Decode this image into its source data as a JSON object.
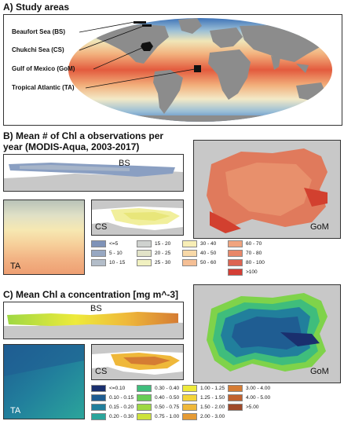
{
  "panel_a": {
    "title": "A) Study areas",
    "labels": [
      {
        "id": "bs",
        "text": "Beaufort Sea (BS)"
      },
      {
        "id": "cs",
        "text": "Chukchi Sea (CS)"
      },
      {
        "id": "gom",
        "text": "Gulf of Mexico (GoM)"
      },
      {
        "id": "ta",
        "text": "Tropical Atlantic (TA)"
      }
    ]
  },
  "panel_b": {
    "title_line1": "B) Mean # of Chl a observations per",
    "title_line2": "year (MODIS-Aqua, 2003-2017)",
    "map_labels": {
      "bs": "BS",
      "cs": "CS",
      "gom": "GoM",
      "ta": "TA"
    },
    "legend": [
      {
        "label": "<=5",
        "color": "#7f93b8"
      },
      {
        "label": "5 - 10",
        "color": "#98a8c2"
      },
      {
        "label": "10 - 15",
        "color": "#b3bdc9"
      },
      {
        "label": "15 - 20",
        "color": "#cfd2cf"
      },
      {
        "label": "20 - 25",
        "color": "#e2e3c8"
      },
      {
        "label": "25 - 30",
        "color": "#f1f1c0"
      },
      {
        "label": "30 - 40",
        "color": "#f8eeb6"
      },
      {
        "label": "40 - 50",
        "color": "#f8d9a8"
      },
      {
        "label": "50 - 60",
        "color": "#f5bf95"
      },
      {
        "label": "60 - 70",
        "color": "#f0a47e"
      },
      {
        "label": "70 - 80",
        "color": "#e88769"
      },
      {
        "label": "80 - 100",
        "color": "#dd6452"
      },
      {
        "label": ">100",
        "color": "#d43e35"
      }
    ]
  },
  "panel_c": {
    "title": "C) Mean Chl a concentration [mg m^-3]",
    "map_labels": {
      "bs": "BS",
      "cs": "CS",
      "gom": "GoM",
      "ta": "TA"
    },
    "legend": [
      {
        "label": "<=0.10",
        "color": "#1a2f6e"
      },
      {
        "label": "0.10 - 0.15",
        "color": "#1f5d92"
      },
      {
        "label": "0.15 - 0.20",
        "color": "#217f9c"
      },
      {
        "label": "0.20 - 0.30",
        "color": "#2ba59b"
      },
      {
        "label": "0.30 - 0.40",
        "color": "#3fbd7c"
      },
      {
        "label": "0.40 - 0.50",
        "color": "#68cc55"
      },
      {
        "label": "0.50 - 0.75",
        "color": "#9ed843"
      },
      {
        "label": "0.75 - 1.00",
        "color": "#cde23b"
      },
      {
        "label": "1.00 - 1.25",
        "color": "#eeea3b"
      },
      {
        "label": "1.25 - 1.50",
        "color": "#f3d43a"
      },
      {
        "label": "1.50 - 2.00",
        "color": "#efb83a"
      },
      {
        "label": "2.00 - 3.00",
        "color": "#e59b35"
      },
      {
        "label": "3.00 - 4.00",
        "color": "#d57c33"
      },
      {
        "label": "4.00 - 5.00",
        "color": "#c0622f"
      },
      {
        "label": ">5.00",
        "color": "#9f4a2a"
      }
    ]
  }
}
